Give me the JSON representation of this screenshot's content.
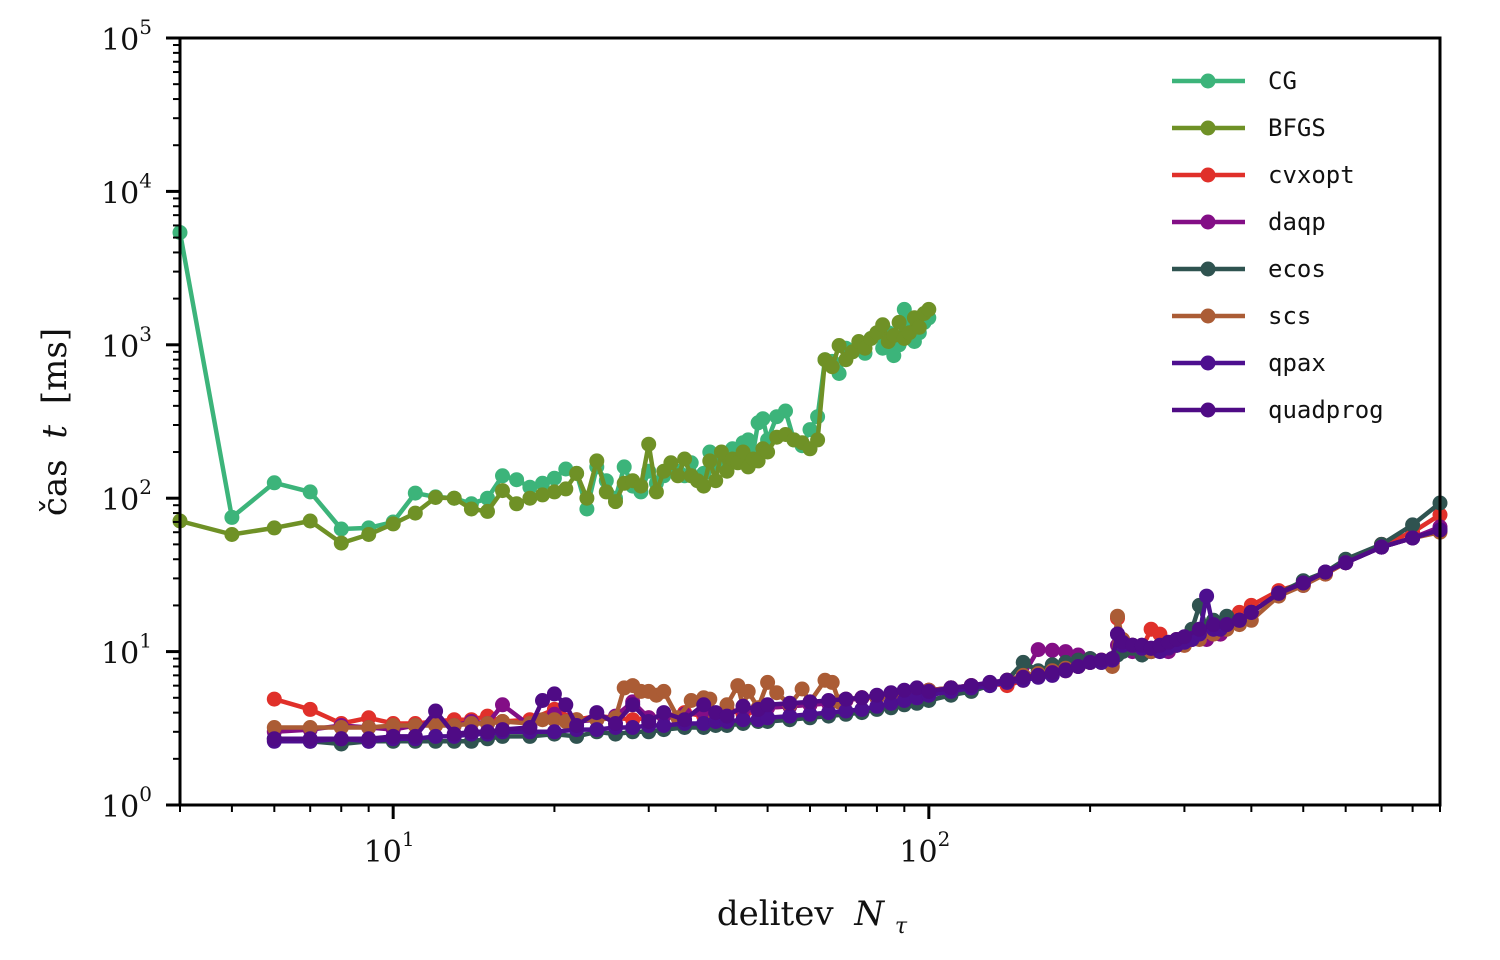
{
  "chart_data": {
    "type": "line",
    "title": "",
    "xlabel": "delitev N_τ",
    "xlabel_text": "delitev",
    "xlabel_symbol": "N",
    "xlabel_subscript": "τ",
    "ylabel": "čas t [ms]",
    "ylabel_text": "čas",
    "ylabel_symbol": "t",
    "ylabel_unit": "[ms]",
    "xscale": "log",
    "yscale": "log",
    "xlim": [
      4,
      900
    ],
    "ylim": [
      1,
      100000
    ],
    "grid": false,
    "legend_position": "top-right",
    "x_ticks": [
      {
        "base": "10",
        "exp": "1",
        "value": 10
      },
      {
        "base": "10",
        "exp": "2",
        "value": 100
      }
    ],
    "y_ticks": [
      {
        "base": "10",
        "exp": "0",
        "value": 1
      },
      {
        "base": "10",
        "exp": "1",
        "value": 10
      },
      {
        "base": "10",
        "exp": "2",
        "value": 100
      },
      {
        "base": "10",
        "exp": "3",
        "value": 1000
      },
      {
        "base": "10",
        "exp": "4",
        "value": 10000
      },
      {
        "base": "10",
        "exp": "5",
        "value": 100000
      }
    ],
    "series": [
      {
        "name": "CG",
        "color": "#3cb47a",
        "x": [
          4,
          5,
          6,
          7,
          8,
          9,
          10,
          11,
          12,
          13,
          14,
          15,
          16,
          17,
          18,
          19,
          20,
          21,
          22,
          23,
          24,
          25,
          26,
          27,
          28,
          29,
          30,
          31,
          32,
          33,
          34,
          35,
          36,
          37,
          38,
          39,
          40,
          41,
          42,
          43,
          44,
          45,
          46,
          47,
          48,
          49,
          50,
          52,
          54,
          56,
          58,
          60,
          62,
          64,
          66,
          68,
          70,
          72,
          74,
          76,
          78,
          80,
          82,
          84,
          86,
          88,
          90,
          92,
          94,
          96,
          98,
          100
        ],
        "y": [
          5400,
          75,
          126,
          110,
          63,
          64,
          70,
          108,
          102,
          100,
          92,
          100,
          140,
          132,
          118,
          125,
          135,
          155,
          145,
          85,
          160,
          130,
          100,
          160,
          120,
          110,
          150,
          125,
          140,
          160,
          150,
          140,
          170,
          135,
          145,
          200,
          165,
          170,
          175,
          210,
          190,
          230,
          240,
          200,
          310,
          330,
          240,
          340,
          370,
          240,
          220,
          280,
          340,
          800,
          780,
          650,
          950,
          900,
          1000,
          880,
          1100,
          1150,
          950,
          1200,
          850,
          1000,
          1700,
          1300,
          1050,
          1200,
          1400,
          1500
        ]
      },
      {
        "name": "BFGS",
        "color": "#6f9126",
        "x": [
          4,
          5,
          6,
          7,
          8,
          9,
          10,
          11,
          12,
          13,
          14,
          15,
          16,
          17,
          18,
          19,
          20,
          21,
          22,
          23,
          24,
          25,
          26,
          27,
          28,
          29,
          30,
          31,
          32,
          33,
          34,
          35,
          36,
          37,
          38,
          39,
          40,
          41,
          42,
          43,
          44,
          45,
          46,
          47,
          48,
          49,
          50,
          52,
          54,
          56,
          58,
          60,
          62,
          64,
          65,
          66,
          68,
          70,
          72,
          74,
          76,
          78,
          80,
          82,
          84,
          86,
          88,
          90,
          92,
          94,
          96,
          98,
          100
        ],
        "y": [
          71,
          58,
          64,
          71,
          51,
          58,
          68,
          80,
          101,
          100,
          85,
          82,
          112,
          92,
          100,
          105,
          110,
          115,
          145,
          100,
          175,
          110,
          95,
          125,
          130,
          120,
          225,
          110,
          150,
          170,
          140,
          180,
          140,
          130,
          120,
          175,
          130,
          200,
          150,
          180,
          170,
          200,
          160,
          180,
          175,
          210,
          200,
          250,
          260,
          240,
          230,
          210,
          240,
          800,
          760,
          720,
          990,
          800,
          900,
          1050,
          950,
          1100,
          1200,
          1350,
          1050,
          1150,
          1400,
          1100,
          1200,
          1500,
          1300,
          1600,
          1700
        ]
      },
      {
        "name": "cvxopt",
        "color": "#e0302a",
        "x": [
          6,
          7,
          8,
          9,
          10,
          11,
          12,
          13,
          14,
          15,
          16,
          18,
          20,
          22,
          24,
          26,
          28,
          30,
          32,
          35,
          38,
          40,
          42,
          45,
          48,
          50,
          55,
          60,
          65,
          70,
          75,
          80,
          85,
          90,
          95,
          100,
          110,
          120,
          130,
          140,
          150,
          160,
          170,
          180,
          190,
          200,
          210,
          220,
          225,
          230,
          240,
          250,
          260,
          270,
          280,
          290,
          300,
          310,
          320,
          330,
          340,
          350,
          360,
          380,
          400,
          450,
          500,
          550,
          600,
          700,
          800,
          900
        ],
        "y": [
          4.9,
          4.2,
          3.4,
          3.7,
          3.4,
          3.4,
          3.5,
          3.6,
          3.6,
          3.8,
          3.5,
          3.6,
          4.2,
          3.6,
          3.8,
          3.7,
          3.6,
          3.7,
          3.8,
          4.0,
          3.8,
          3.9,
          4.2,
          3.9,
          4.1,
          4.3,
          4.4,
          4.5,
          4.6,
          4.8,
          5.0,
          5.0,
          5.2,
          5.3,
          5.5,
          5.6,
          5.8,
          6.0,
          6.2,
          6.0,
          6.5,
          7.0,
          7.2,
          7.5,
          8.0,
          8.5,
          8.8,
          8.5,
          16.5,
          12,
          11,
          10.5,
          14,
          13,
          11,
          12,
          11,
          12,
          13,
          12.5,
          14,
          13,
          15,
          18,
          20,
          25,
          28,
          32,
          38,
          50,
          60,
          78
        ]
      },
      {
        "name": "daqp",
        "color": "#830e86",
        "x": [
          6,
          7,
          8,
          9,
          10,
          11,
          12,
          13,
          14,
          15,
          16,
          18,
          20,
          22,
          24,
          26,
          28,
          30,
          32,
          35,
          38,
          40,
          42,
          45,
          48,
          50,
          55,
          60,
          65,
          70,
          75,
          80,
          85,
          90,
          95,
          100,
          110,
          120,
          130,
          140,
          150,
          160,
          170,
          180,
          190,
          200,
          210,
          220,
          225,
          230,
          240,
          250,
          260,
          270,
          280,
          290,
          300,
          310,
          320,
          330,
          340,
          350,
          360,
          380,
          400,
          450,
          500,
          550,
          600,
          700,
          800,
          900
        ],
        "y": [
          3.0,
          3.1,
          3.3,
          3.2,
          3.1,
          3.3,
          3.4,
          3.3,
          3.5,
          3.4,
          4.5,
          3.3,
          3.9,
          3.5,
          3.6,
          3.8,
          4.7,
          3.7,
          3.8,
          3.9,
          4.0,
          3.9,
          4.0,
          4.2,
          4.1,
          4.3,
          4.4,
          4.5,
          4.6,
          4.8,
          5.0,
          5.0,
          5.2,
          5.3,
          5.5,
          5.6,
          5.8,
          6.0,
          6.2,
          6.5,
          7.0,
          10.3,
          10.2,
          10.0,
          9.5,
          9.0,
          8.7,
          8.8,
          11,
          10.5,
          10,
          11,
          10,
          10.5,
          10,
          11,
          11.5,
          12,
          13,
          12,
          14,
          13,
          15,
          16,
          18,
          24,
          27,
          33,
          38,
          48,
          55,
          65
        ]
      },
      {
        "name": "ecos",
        "color": "#2f5350",
        "x": [
          6,
          7,
          8,
          9,
          10,
          11,
          12,
          13,
          14,
          15,
          16,
          18,
          20,
          22,
          24,
          26,
          28,
          30,
          32,
          35,
          38,
          40,
          42,
          45,
          48,
          50,
          55,
          60,
          65,
          70,
          75,
          80,
          85,
          90,
          95,
          100,
          110,
          120,
          130,
          140,
          150,
          160,
          170,
          180,
          190,
          200,
          210,
          220,
          225,
          230,
          240,
          250,
          260,
          270,
          280,
          290,
          300,
          310,
          320,
          330,
          340,
          350,
          360,
          380,
          400,
          450,
          500,
          550,
          600,
          700,
          800,
          900
        ],
        "y": [
          2.7,
          2.6,
          2.5,
          2.6,
          2.6,
          2.6,
          2.6,
          2.6,
          2.6,
          2.7,
          2.8,
          2.8,
          2.9,
          2.8,
          3.0,
          2.9,
          3.0,
          3.0,
          3.1,
          3.2,
          3.2,
          3.3,
          3.3,
          3.4,
          3.5,
          3.5,
          3.6,
          3.7,
          3.8,
          3.9,
          4.0,
          4.2,
          4.3,
          4.5,
          4.6,
          4.8,
          5.2,
          5.5,
          6.0,
          6.5,
          8.5,
          7.5,
          8.2,
          8.5,
          8.8,
          9.0,
          8.5,
          9.0,
          9.5,
          10,
          10.5,
          9.5,
          10,
          10.5,
          11,
          11,
          12,
          14,
          20,
          14,
          16,
          15,
          17,
          16,
          18,
          24,
          29,
          33,
          40,
          50,
          67,
          93
        ]
      },
      {
        "name": "scs",
        "color": "#ab5c35",
        "x": [
          6,
          7,
          8,
          9,
          10,
          11,
          12,
          13,
          14,
          15,
          16,
          18,
          19,
          20,
          21,
          22,
          24,
          26,
          27,
          28,
          29,
          30,
          31,
          32,
          34,
          36,
          38,
          39,
          40,
          42,
          44,
          45,
          46,
          48,
          50,
          52,
          55,
          58,
          60,
          64,
          66,
          68,
          70,
          75,
          80,
          85,
          90,
          95,
          100,
          110,
          120,
          130,
          140,
          150,
          160,
          170,
          180,
          190,
          200,
          210,
          220,
          225,
          230,
          240,
          250,
          260,
          270,
          280,
          290,
          300,
          320,
          340,
          360,
          380,
          400,
          450,
          500,
          550,
          600,
          700,
          800,
          900
        ],
        "y": [
          3.2,
          3.2,
          3.2,
          3.2,
          3.3,
          3.3,
          3.3,
          3.3,
          3.4,
          3.4,
          3.5,
          3.4,
          3.6,
          3.6,
          3.5,
          3.6,
          3.6,
          3.7,
          5.8,
          6.0,
          5.5,
          5.5,
          5.2,
          5.5,
          3.7,
          4.8,
          5.0,
          4.9,
          3.7,
          4.5,
          6.0,
          4.4,
          5.5,
          4.3,
          6.3,
          5.4,
          4.5,
          5.7,
          4.7,
          6.5,
          6.3,
          4.7,
          4.9,
          5.0,
          5.0,
          5.2,
          5.3,
          5.5,
          5.6,
          5.8,
          6.0,
          6.2,
          6.5,
          7.0,
          7.2,
          7.5,
          7.8,
          8.0,
          8.5,
          8.5,
          8.0,
          17,
          12,
          11,
          10.5,
          10,
          11,
          10.5,
          11,
          11,
          12,
          13,
          14,
          15,
          16,
          23,
          27,
          32,
          38,
          48,
          55,
          60
        ]
      },
      {
        "name": "qpax",
        "color": "#4d0f8f",
        "x": [
          6,
          7,
          8,
          9,
          10,
          11,
          12,
          13,
          14,
          15,
          16,
          18,
          20,
          22,
          24,
          26,
          28,
          30,
          32,
          35,
          38,
          40,
          42,
          45,
          48,
          50,
          55,
          60,
          65,
          70,
          75,
          80,
          85,
          90,
          95,
          100,
          110,
          120,
          130,
          140,
          150,
          160,
          170,
          180,
          190,
          200,
          210,
          220,
          225,
          230,
          240,
          250,
          260,
          270,
          280,
          290,
          300,
          310,
          320,
          330,
          340,
          350,
          360,
          380,
          400,
          450,
          500,
          550,
          600,
          700,
          800,
          900
        ],
        "y": [
          2.6,
          2.6,
          2.7,
          2.6,
          2.7,
          2.7,
          2.8,
          2.8,
          2.9,
          2.9,
          3.0,
          3.0,
          3.0,
          3.1,
          3.1,
          3.2,
          3.2,
          3.3,
          3.3,
          3.4,
          3.4,
          3.5,
          3.5,
          3.6,
          3.6,
          3.7,
          3.8,
          3.9,
          4.0,
          4.1,
          4.2,
          4.4,
          4.6,
          4.8,
          5.0,
          5.2,
          5.5,
          5.8,
          6.0,
          6.3,
          6.5,
          6.8,
          7.0,
          7.5,
          8.0,
          8.5,
          8.5,
          8.8,
          13,
          11,
          11,
          10.5,
          10.5,
          10,
          10.5,
          11,
          11.5,
          12,
          13,
          23,
          14,
          14,
          15,
          16,
          18,
          24,
          28,
          33,
          38,
          48,
          55,
          62
        ]
      },
      {
        "name": "quadprog",
        "color": "#4f0b85",
        "x": [
          6,
          7,
          8,
          9,
          10,
          11,
          12,
          13,
          14,
          15,
          16,
          18,
          19,
          20,
          21,
          22,
          24,
          26,
          28,
          30,
          32,
          35,
          38,
          40,
          42,
          45,
          48,
          50,
          55,
          60,
          65,
          70,
          75,
          80,
          85,
          90,
          95,
          100,
          110,
          120,
          130,
          140,
          150,
          160,
          170,
          180,
          190,
          200,
          210,
          220,
          225,
          230,
          240,
          250,
          260,
          270,
          280,
          290,
          300,
          320,
          340,
          360,
          380,
          400,
          450,
          500,
          550,
          600,
          700,
          800,
          900
        ],
        "y": [
          2.7,
          2.7,
          2.7,
          2.7,
          2.8,
          2.8,
          4.1,
          2.9,
          3.0,
          3.0,
          3.1,
          3.2,
          4.8,
          5.3,
          4.5,
          3.3,
          4.0,
          3.4,
          4.5,
          3.5,
          4.0,
          3.6,
          4.5,
          4.0,
          3.8,
          4.4,
          4.2,
          4.5,
          4.6,
          4.7,
          4.8,
          4.9,
          5.0,
          5.2,
          5.4,
          5.6,
          5.8,
          5.5,
          5.8,
          6.0,
          6.3,
          6.5,
          6.8,
          7.0,
          7.3,
          7.6,
          8.0,
          8.5,
          8.8,
          9.0,
          13,
          11.5,
          11,
          11,
          10.5,
          11,
          11.5,
          12,
          12.5,
          14,
          15,
          15,
          16,
          18,
          24,
          28,
          33,
          38,
          48,
          55,
          62
        ]
      }
    ]
  }
}
